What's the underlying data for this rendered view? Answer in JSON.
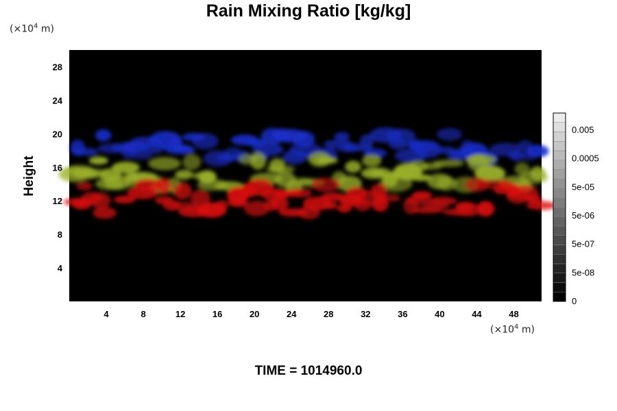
{
  "chart_data": {
    "type": "heatmap",
    "title": "Rain Mixing Ratio [kg/kg]",
    "xlabel": "",
    "ylabel": "Height",
    "x_unit_prefix": "(×10",
    "x_unit_exp": "4",
    "x_unit_suffix": " m)",
    "y_unit_prefix": "(×10",
    "y_unit_exp": "4",
    "y_unit_suffix": " m)",
    "xlim": [
      0,
      51
    ],
    "ylim": [
      0,
      30
    ],
    "x_ticks": [
      "4",
      "8",
      "12",
      "16",
      "20",
      "24",
      "28",
      "32",
      "36",
      "40",
      "44",
      "48"
    ],
    "y_ticks": [
      "4",
      "8",
      "12",
      "16",
      "20",
      "24",
      "28"
    ],
    "colorbar_labels": [
      "0",
      "5e-08",
      "5e-07",
      "5e-06",
      "5e-05",
      "0.0005",
      "0.005"
    ],
    "background_color": "#000000",
    "layers": [
      {
        "color": "#1a2dc8",
        "height_range": [
          17,
          20
        ]
      },
      {
        "color": "#9bb02a",
        "height_range": [
          13.5,
          17
        ]
      },
      {
        "color": "#d81010",
        "height_range": [
          10.5,
          14
        ]
      }
    ],
    "footer": "TIME = 1014960.0"
  }
}
